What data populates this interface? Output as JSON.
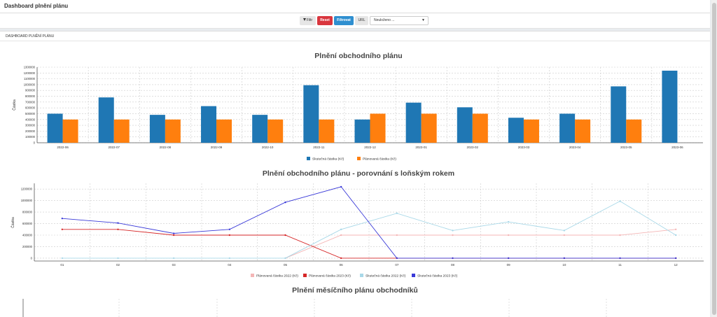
{
  "header": {
    "title": "Dashboard plnění plánu"
  },
  "filterbar": {
    "filter_label": "Filtr",
    "reset_label": "Reset",
    "apply_label": "Filtrovat",
    "url_label": "URL",
    "select_value": "Neuloženo ..."
  },
  "panel": {
    "title": "DASHBOARD PLNĚNÍ PLÁNU"
  },
  "colors": {
    "actual": "#1f77b4",
    "plan": "#ff7f0e",
    "plan2022": "#f4b6b6",
    "plan2023": "#d62728",
    "actual2022": "#a8d8e8",
    "actual2023": "#3a3ad8"
  },
  "chart_data": [
    {
      "type": "bar",
      "title": "Plnění obchodního plánu",
      "ylabel": "Částka",
      "ylim": [
        0,
        1300000
      ],
      "yticks": [
        0,
        100000,
        200000,
        300000,
        400000,
        500000,
        600000,
        700000,
        800000,
        900000,
        1000000,
        1100000,
        1200000,
        1300000
      ],
      "categories": [
        "2022-06",
        "2022-07",
        "2022-08",
        "2022-09",
        "2022-10",
        "2022-11",
        "2022-12",
        "2023-01",
        "2023-02",
        "2023-03",
        "2023-04",
        "2023-05",
        "2023-06"
      ],
      "series": [
        {
          "name": "Skutečná částka (Kč)",
          "color": "#1f77b4",
          "values": [
            500000,
            780000,
            480000,
            630000,
            480000,
            990000,
            400000,
            690000,
            610000,
            430000,
            500000,
            970000,
            1240000
          ]
        },
        {
          "name": "Plánovaná částka (Kč)",
          "color": "#ff7f0e",
          "values": [
            400000,
            400000,
            400000,
            400000,
            400000,
            400000,
            500000,
            500000,
            500000,
            400000,
            400000,
            400000,
            null
          ]
        }
      ],
      "legend": "bottom"
    },
    {
      "type": "line",
      "title": "Plnění obchodního plánu - porovnání s loňským rokem",
      "ylabel": "Částka",
      "ylim": [
        -50000,
        1300000
      ],
      "yticks": [
        0,
        200000,
        400000,
        600000,
        800000,
        1000000,
        1200000
      ],
      "categories": [
        "01",
        "02",
        "03",
        "04",
        "05",
        "06",
        "07",
        "08",
        "09",
        "10",
        "11",
        "12"
      ],
      "series": [
        {
          "name": "Plánovaná částka 2022 (Kč)",
          "color": "#f4b6b6",
          "values": [
            null,
            null,
            null,
            null,
            0,
            400000,
            400000,
            400000,
            400000,
            400000,
            400000,
            500000
          ]
        },
        {
          "name": "Plánovaná částka 2023 (Kč)",
          "color": "#d62728",
          "values": [
            500000,
            500000,
            400000,
            400000,
            400000,
            0,
            0,
            0,
            0,
            0,
            0,
            0
          ]
        },
        {
          "name": "Skutečná částka 2022 (Kč)",
          "color": "#a8d8e8",
          "values": [
            0,
            0,
            0,
            0,
            0,
            500000,
            780000,
            480000,
            630000,
            480000,
            990000,
            400000
          ]
        },
        {
          "name": "Skutečná částka 2023 (Kč)",
          "color": "#3a3ad8",
          "values": [
            690000,
            610000,
            430000,
            500000,
            970000,
            1240000,
            0,
            0,
            0,
            0,
            0,
            0
          ]
        }
      ],
      "legend": "bottom"
    },
    {
      "type": "bar",
      "title": "Plnění měsíčního plánu obchodníků",
      "categories": [],
      "series": []
    }
  ]
}
